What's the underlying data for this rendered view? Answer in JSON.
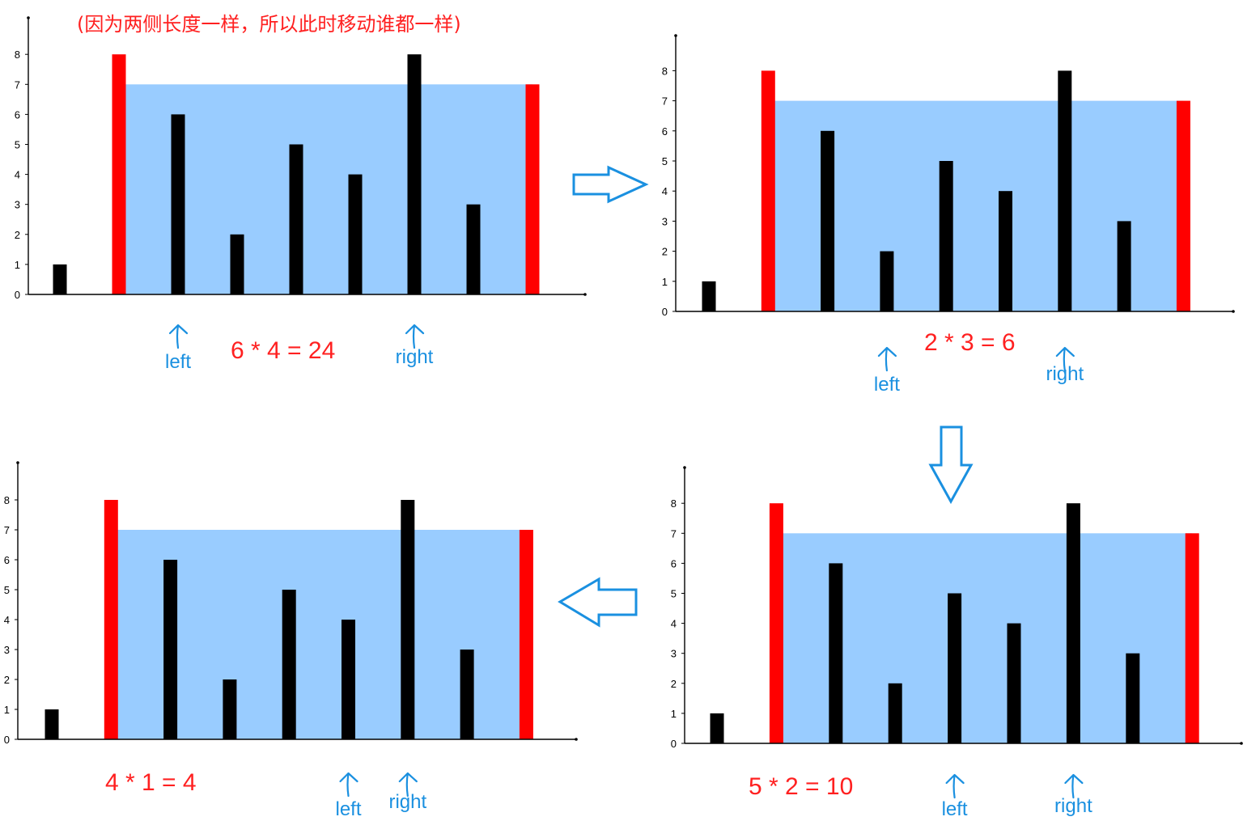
{
  "note": "(因为两侧长度一样，所以此时移动谁都一样)",
  "colors": {
    "water": "#99ccff",
    "wall": "#ff0000",
    "bar": "#000000",
    "pointer": "#1a90e0",
    "equation": "#ff2020",
    "step_arrow": "#1a90e0"
  },
  "icons": {
    "pointer": "up-arrow-icon",
    "step": "hollow-block-arrow-icon"
  },
  "chart_data": [
    {
      "type": "bar",
      "x": [
        0,
        1,
        2,
        3,
        4,
        5,
        6,
        7,
        8
      ],
      "values": [
        1,
        8,
        6,
        2,
        5,
        4,
        8,
        3,
        7
      ],
      "ylim": [
        0,
        8
      ],
      "yticks": [
        "0",
        "1",
        "2",
        "3",
        "4",
        "5",
        "6",
        "7",
        "8"
      ],
      "highlighted_walls": [
        1,
        8
      ],
      "water_level": 7,
      "equation": "6 * 4 = 24",
      "left_pointer": {
        "label": "left",
        "at": 2
      },
      "right_pointer": {
        "label": "right",
        "at": 6
      }
    },
    {
      "type": "bar",
      "x": [
        0,
        1,
        2,
        3,
        4,
        5,
        6,
        7,
        8
      ],
      "values": [
        1,
        8,
        6,
        2,
        5,
        4,
        8,
        3,
        7
      ],
      "ylim": [
        0,
        8
      ],
      "yticks": [
        "0",
        "1",
        "2",
        "3",
        "4",
        "5",
        "6",
        "7",
        "8"
      ],
      "highlighted_walls": [
        1,
        8
      ],
      "water_level": 7,
      "equation": "2 * 3 = 6",
      "left_pointer": {
        "label": "left",
        "at": 3
      },
      "right_pointer": {
        "label": "right",
        "at": 6
      }
    },
    {
      "type": "bar",
      "x": [
        0,
        1,
        2,
        3,
        4,
        5,
        6,
        7,
        8
      ],
      "values": [
        1,
        8,
        6,
        2,
        5,
        4,
        8,
        3,
        7
      ],
      "ylim": [
        0,
        8
      ],
      "yticks": [
        "0",
        "1",
        "2",
        "3",
        "4",
        "5",
        "6",
        "7",
        "8"
      ],
      "highlighted_walls": [
        1,
        8
      ],
      "water_level": 7,
      "equation": "5 * 2 = 10",
      "left_pointer": {
        "label": "left",
        "at": 4
      },
      "right_pointer": {
        "label": "right",
        "at": 6
      }
    },
    {
      "type": "bar",
      "x": [
        0,
        1,
        2,
        3,
        4,
        5,
        6,
        7,
        8
      ],
      "values": [
        1,
        8,
        6,
        2,
        5,
        4,
        8,
        3,
        7
      ],
      "ylim": [
        0,
        8
      ],
      "yticks": [
        "0",
        "1",
        "2",
        "3",
        "4",
        "5",
        "6",
        "7",
        "8"
      ],
      "highlighted_walls": [
        1,
        8
      ],
      "water_level": 7,
      "equation": "4 * 1 = 4",
      "left_pointer": {
        "label": "left",
        "at": 5
      },
      "right_pointer": {
        "label": "right",
        "at": 6
      }
    }
  ]
}
